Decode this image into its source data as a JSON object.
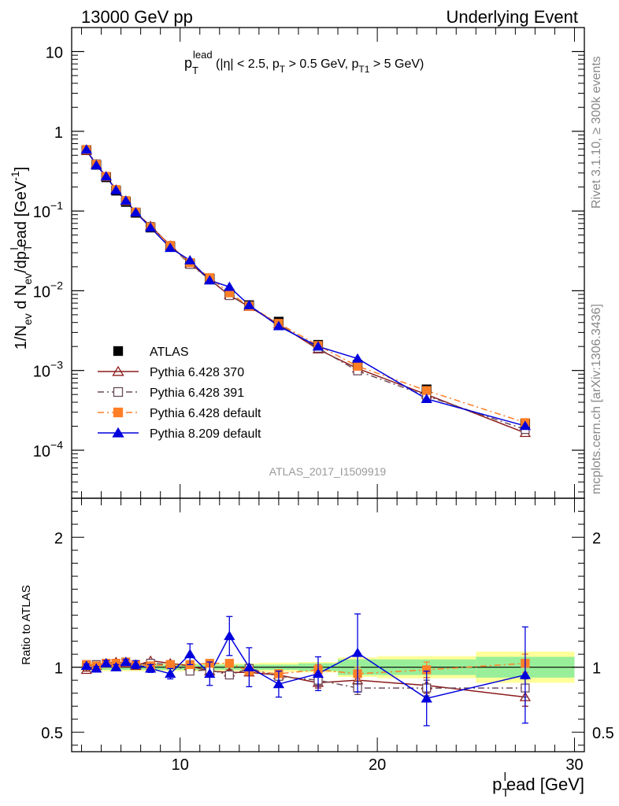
{
  "header": {
    "left": "13000 GeV pp",
    "right": "Underlying Event"
  },
  "side_labels": {
    "rivet": "Rivet 3.1.10, ≥ 300k events",
    "mcplots": "mcplots.cern.ch [arXiv:1306.3436]"
  },
  "chart_data": [
    {
      "type": "scatter",
      "panel": "main",
      "title_main": "p",
      "title_sub": "T",
      "title_sup": "lead",
      "title_cut1": " (|η| < 2.5, p",
      "title_cut1_sub": "T",
      "title_cut2": " > 0.5 GeV, p",
      "title_cut2_sub": "T1",
      "title_cut3": " > 5 GeV)",
      "ylabel": "1/N_ev d N_ev/dp_T^lead [GeV^-1]",
      "ylabel_parts": {
        "a": "1/N",
        "a_sub": "ev",
        "b": " d N",
        "b_sub": "ev",
        "c": "/dp",
        "c_sub": "T",
        "c_sup": "l",
        "d": "ead [GeV",
        "d_sup": "-1",
        "e": "]"
      },
      "yscale": "log",
      "ylim": [
        2.5e-05,
        20
      ],
      "xlim": [
        4.5,
        30.5
      ],
      "y_ticks": [
        {
          "value": 0.0001,
          "base": "10",
          "exp": "−4"
        },
        {
          "value": 0.001,
          "base": "10",
          "exp": "−3"
        },
        {
          "value": 0.01,
          "base": "10",
          "exp": "−2"
        },
        {
          "value": 0.1,
          "base": "10",
          "exp": "−1"
        },
        {
          "value": 1,
          "base": "1",
          "exp": ""
        },
        {
          "value": 10,
          "base": "10",
          "exp": ""
        }
      ],
      "watermark": "ATLAS_2017_I1509919",
      "legend_position": "bottom-left",
      "x": [
        5.25,
        5.75,
        6.25,
        6.75,
        7.25,
        7.75,
        8.5,
        9.5,
        10.5,
        11.5,
        12.5,
        13.5,
        15,
        17,
        19,
        22.5,
        27.5
      ],
      "series": [
        {
          "name": "ATLAS",
          "color": "#000000",
          "marker": "square-filled",
          "line": "none",
          "values": [
            0.58,
            0.38,
            0.265,
            0.18,
            0.13,
            0.095,
            0.062,
            0.036,
            0.022,
            0.0142,
            0.0092,
            0.0066,
            0.0041,
            0.0021,
            0.00118,
            0.00058,
            0.000215
          ]
        },
        {
          "name": "Pythia 6.428 370",
          "color": "#8b1a1a",
          "marker": "triangle-open",
          "line": "solid",
          "values": [
            0.57,
            0.385,
            0.272,
            0.186,
            0.134,
            0.096,
            0.065,
            0.037,
            0.0222,
            0.0138,
            0.0088,
            0.0063,
            0.0038,
            0.00184,
            0.00106,
            0.0005,
            0.000165
          ]
        },
        {
          "name": "Pythia 6.428 391",
          "color": "#6b4a5a",
          "marker": "square-open",
          "line": "dashdot",
          "values": [
            0.59,
            0.39,
            0.272,
            0.185,
            0.135,
            0.097,
            0.064,
            0.037,
            0.0214,
            0.0139,
            0.0087,
            0.0065,
            0.0038,
            0.0019,
            0.00099,
            0.00048,
            0.000182
          ]
        },
        {
          "name": "Pythia 6.428 default",
          "color": "#ff7f27",
          "marker": "square-filled",
          "line": "dashdot",
          "values": [
            0.59,
            0.385,
            0.272,
            0.186,
            0.135,
            0.097,
            0.063,
            0.037,
            0.0225,
            0.0146,
            0.0094,
            0.0064,
            0.0039,
            0.00206,
            0.00113,
            0.00056,
            0.000222
          ]
        },
        {
          "name": "Pythia 8.209 default",
          "color": "#0000dd",
          "marker": "triangle-filled",
          "line": "solid",
          "values": [
            0.59,
            0.375,
            0.272,
            0.183,
            0.135,
            0.096,
            0.062,
            0.0345,
            0.0241,
            0.0135,
            0.0112,
            0.0066,
            0.0036,
            0.002,
            0.00141,
            0.00044,
            0.000202
          ]
        }
      ],
      "errors_log": [
        0,
        0,
        0,
        0,
        0,
        0,
        0,
        0,
        0,
        0,
        0,
        0,
        0,
        0,
        0,
        0,
        0
      ]
    },
    {
      "type": "scatter",
      "panel": "ratio",
      "ylabel": "Ratio to ATLAS",
      "xlabel_main": "p",
      "xlabel_sub": "T",
      "xlabel_sup": "l",
      "xlabel_rest": "ead [GeV]",
      "ylim": [
        0.35,
        2.3
      ],
      "xlim": [
        4.5,
        30.5
      ],
      "x_ticks": [
        {
          "value": 10,
          "label": "10"
        },
        {
          "value": 20,
          "label": "20"
        },
        {
          "value": 30,
          "label": "30"
        }
      ],
      "y_ticks": [
        {
          "value": 0.5,
          "label": "0.5"
        },
        {
          "value": 1,
          "label": "1"
        },
        {
          "value": 2,
          "label": "2"
        }
      ],
      "bins": [
        [
          5,
          5.5
        ],
        [
          5.5,
          6
        ],
        [
          6,
          6.5
        ],
        [
          6.5,
          7
        ],
        [
          7,
          7.5
        ],
        [
          7.5,
          8
        ],
        [
          8,
          9
        ],
        [
          9,
          10
        ],
        [
          10,
          11
        ],
        [
          11,
          12
        ],
        [
          12,
          13
        ],
        [
          13,
          14
        ],
        [
          14,
          16
        ],
        [
          16,
          18
        ],
        [
          18,
          20
        ],
        [
          20,
          25
        ],
        [
          25,
          30
        ]
      ],
      "band_stat": [
        0.02,
        0.02,
        0.02,
        0.02,
        0.02,
        0.02,
        0.02,
        0.02,
        0.02,
        0.02,
        0.02,
        0.02,
        0.02,
        0.03,
        0.06,
        0.06,
        0.08
      ],
      "band_total": [
        0.03,
        0.03,
        0.03,
        0.03,
        0.03,
        0.03,
        0.03,
        0.03,
        0.03,
        0.03,
        0.03,
        0.03,
        0.035,
        0.04,
        0.075,
        0.085,
        0.12
      ],
      "series": [
        {
          "name": "Pythia 6.428 370",
          "color": "#8b1a1a",
          "marker": "triangle-open",
          "line": "solid",
          "values": [
            0.98,
            1.01,
            1.03,
            1.04,
            1.03,
            1.01,
            1.05,
            1.03,
            1.01,
            0.97,
            0.96,
            0.96,
            0.94,
            0.88,
            0.9,
            0.86,
            0.77
          ],
          "errors": [
            0.01,
            0.01,
            0.01,
            0.01,
            0.01,
            0.01,
            0.01,
            0.01,
            0.02,
            0.02,
            0.02,
            0.02,
            0.03,
            0.04,
            0.05,
            0.06,
            0.07
          ]
        },
        {
          "name": "Pythia 6.428 391",
          "color": "#6b4a5a",
          "marker": "square-open",
          "line": "dashdot",
          "values": [
            1.02,
            1.02,
            1.03,
            1.03,
            1.04,
            1.02,
            1.03,
            1.02,
            0.97,
            0.98,
            0.94,
            0.99,
            0.93,
            0.9,
            0.84,
            0.84,
            0.84
          ],
          "errors": [
            0.01,
            0.01,
            0.01,
            0.01,
            0.01,
            0.01,
            0.01,
            0.01,
            0.02,
            0.02,
            0.02,
            0.02,
            0.03,
            0.04,
            0.05,
            0.06,
            0.07
          ]
        },
        {
          "name": "Pythia 6.428 default",
          "color": "#ff7f27",
          "marker": "square-filled",
          "line": "dashdot",
          "values": [
            1.02,
            1.01,
            1.03,
            1.03,
            1.04,
            1.02,
            1.01,
            1.02,
            1.02,
            1.03,
            1.03,
            0.97,
            0.95,
            0.98,
            0.95,
            0.98,
            1.03
          ],
          "errors": [
            0.01,
            0.01,
            0.01,
            0.01,
            0.01,
            0.01,
            0.01,
            0.01,
            0.02,
            0.02,
            0.02,
            0.02,
            0.03,
            0.04,
            0.05,
            0.06,
            0.07
          ]
        },
        {
          "name": "Pythia 8.209 default",
          "color": "#0000dd",
          "marker": "triangle-filled",
          "line": "solid",
          "values": [
            1.01,
            0.99,
            1.03,
            1.0,
            1.04,
            1.02,
            0.99,
            0.95,
            1.1,
            0.95,
            1.24,
            1.0,
            0.87,
            0.95,
            1.11,
            0.76,
            0.94
          ],
          "errors": [
            0.015,
            0.015,
            0.02,
            0.02,
            0.02,
            0.03,
            0.03,
            0.04,
            0.08,
            0.09,
            0.15,
            0.15,
            0.1,
            0.13,
            0.3,
            0.21,
            0.37
          ]
        }
      ]
    }
  ]
}
